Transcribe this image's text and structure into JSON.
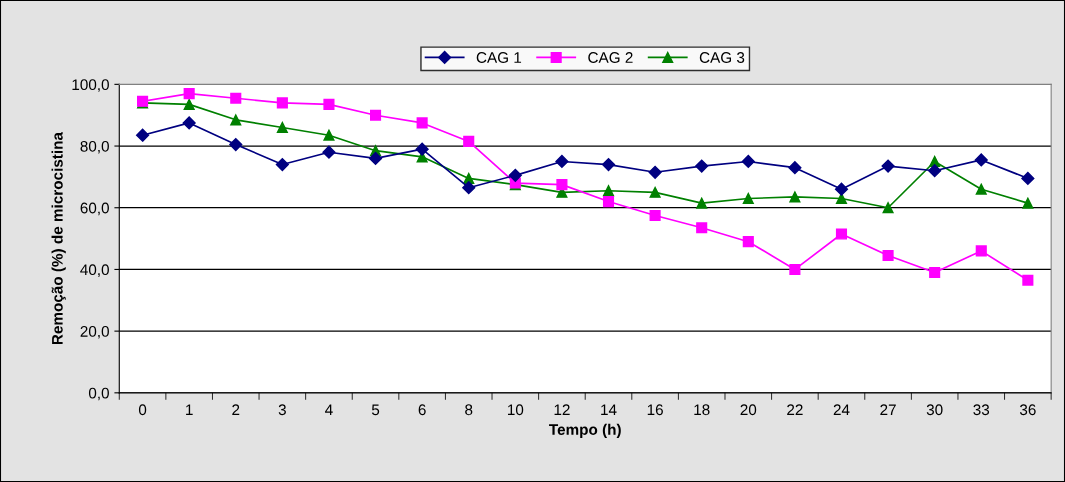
{
  "chart_data": {
    "type": "line",
    "xlabel": "Tempo (h)",
    "ylabel": "Remoção (%) de microcistina",
    "categories": [
      "0",
      "1",
      "2",
      "3",
      "4",
      "5",
      "6",
      "8",
      "10",
      "12",
      "14",
      "16",
      "18",
      "20",
      "22",
      "24",
      "27",
      "30",
      "33",
      "36"
    ],
    "series": [
      {
        "name": "CAG 1",
        "color": "#000080",
        "marker": "diamond",
        "values": [
          83.5,
          87.5,
          80.5,
          74,
          78,
          76,
          79,
          66.5,
          70.5,
          75,
          74,
          71.5,
          73.5,
          75,
          73,
          66,
          73.5,
          72,
          75.5,
          69.5
        ]
      },
      {
        "name": "CAG 2",
        "color": "#ff00ff",
        "marker": "square",
        "values": [
          94.5,
          97,
          95.5,
          94,
          93.5,
          90,
          87.5,
          81.5,
          68,
          67.5,
          62,
          57.5,
          53.5,
          49,
          40,
          51.5,
          44.5,
          39,
          46,
          36.5
        ]
      },
      {
        "name": "CAG 3",
        "color": "#008000",
        "marker": "triangle",
        "values": [
          94,
          93.5,
          88.5,
          86,
          83.5,
          78.5,
          76.5,
          69.5,
          67.5,
          65,
          65.5,
          65,
          61.5,
          63,
          63.5,
          63,
          60,
          75,
          66,
          61.5
        ]
      }
    ],
    "ylim": [
      0,
      100
    ],
    "yticks": [
      {
        "value": 0,
        "label": "0,0"
      },
      {
        "value": 20,
        "label": "20,0"
      },
      {
        "value": 40,
        "label": "40,0"
      },
      {
        "value": 60,
        "label": "60,0"
      },
      {
        "value": 80,
        "label": "80,0"
      },
      {
        "value": 100,
        "label": "100,0"
      }
    ],
    "grid": "y",
    "legend": "top",
    "line_style": "solid"
  }
}
